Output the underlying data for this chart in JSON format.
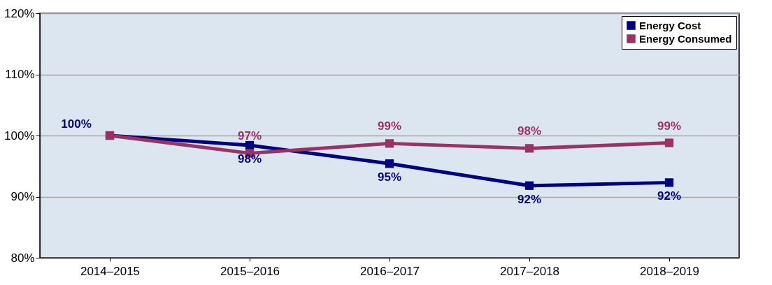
{
  "chart_data": {
    "type": "line",
    "categories": [
      "2014–2015",
      "2015–2016",
      "2016–2017",
      "2017–2018",
      "2018–2019"
    ],
    "series": [
      {
        "name": "Energy Cost",
        "color": "#000080",
        "values": [
          100,
          98.4,
          95.4,
          91.8,
          92.3
        ],
        "value_labels": [
          "100%",
          "98%",
          "95%",
          "92%",
          "92%"
        ]
      },
      {
        "name": "Energy Consumed",
        "color": "#993366",
        "values": [
          100,
          97.1,
          98.7,
          97.9,
          98.8
        ],
        "value_labels": [
          null,
          "97%",
          "99%",
          "98%",
          "99%"
        ]
      }
    ],
    "ylim": [
      80,
      120
    ],
    "yticks": [
      {
        "value": 80,
        "label": "80%"
      },
      {
        "value": 90,
        "label": "90%"
      },
      {
        "value": 100,
        "label": "100%"
      },
      {
        "value": 110,
        "label": "110%"
      },
      {
        "value": 120,
        "label": "120%"
      }
    ],
    "grid": "y",
    "legend": "top right",
    "marker": "square",
    "line_style": "solid"
  }
}
